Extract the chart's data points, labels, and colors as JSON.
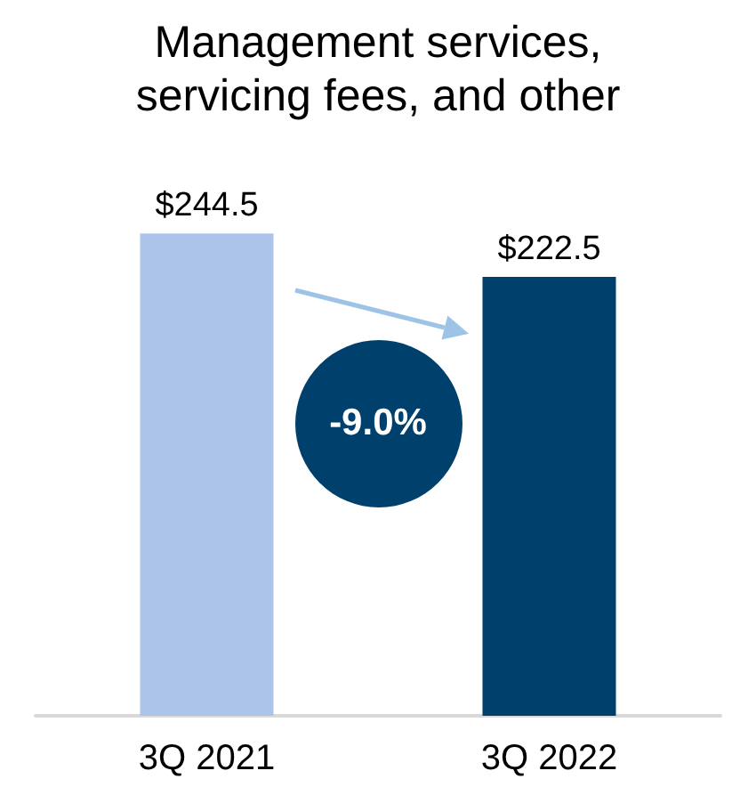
{
  "chart_data": {
    "type": "bar",
    "title": "Management services,\nservicing fees, and other",
    "categories": [
      "3Q 2021",
      "3Q 2022"
    ],
    "values": [
      244.5,
      222.5
    ],
    "colors": [
      "#abc4e8",
      "#00406c"
    ],
    "value_labels": [
      "$244.5",
      "$222.5"
    ],
    "annotations": [
      "-9.0%"
    ]
  }
}
